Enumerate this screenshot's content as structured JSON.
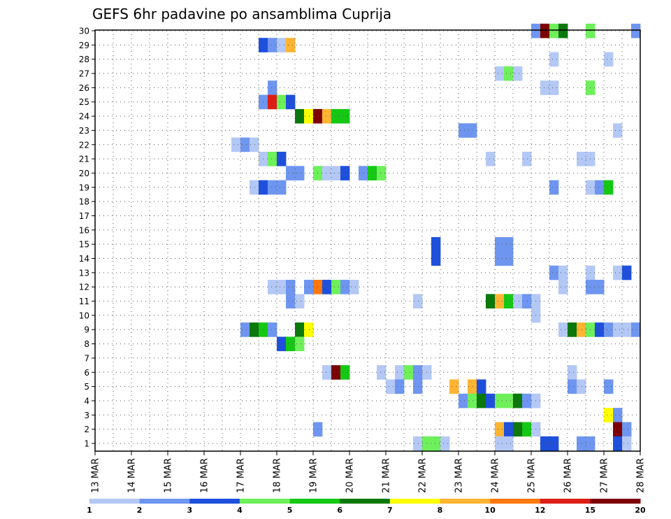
{
  "chart_data": {
    "type": "heatmap",
    "title": "GEFS 6hr padavine po ansamblima Cuprija",
    "ylabel": "",
    "xlabel": "",
    "y_range": [
      1,
      30
    ],
    "x_range": [
      13,
      28
    ],
    "y_ticks": [
      "1",
      "2",
      "3",
      "4",
      "5",
      "6",
      "7",
      "8",
      "9",
      "10",
      "11",
      "12",
      "13",
      "14",
      "15",
      "16",
      "17",
      "18",
      "19",
      "20",
      "21",
      "22",
      "23",
      "24",
      "25",
      "26",
      "27",
      "28",
      "29",
      "30"
    ],
    "x_ticks": [
      "13 MAR",
      "14 MAR",
      "15 MAR",
      "16 MAR",
      "17 MAR",
      "18 MAR",
      "19 MAR",
      "20 MAR",
      "21 MAR",
      "22 MAR",
      "23 MAR",
      "24 MAR",
      "25 MAR",
      "26 MAR",
      "27 MAR",
      "28 MAR"
    ],
    "grid": true,
    "legend": {
      "position": "bottom",
      "colors": [
        "#b4c8f5",
        "#6e96f0",
        "#1e50dc",
        "#6ef05a",
        "#14c814",
        "#0a780a",
        "#ffff00",
        "#ffb432",
        "#ff780a",
        "#dc1e14",
        "#7d0000"
      ],
      "labels": [
        "1",
        "2",
        "3",
        "4",
        "5",
        "6",
        "7",
        "8",
        "10",
        "12",
        "15",
        "20"
      ]
    },
    "cells": [
      {
        "y": 30,
        "x": 25.0,
        "c": 2
      },
      {
        "y": 30,
        "x": 25.25,
        "c": 11
      },
      {
        "y": 30,
        "x": 25.5,
        "c": 4
      },
      {
        "y": 30,
        "x": 25.75,
        "c": 6
      },
      {
        "y": 30,
        "x": 26.5,
        "c": 4
      },
      {
        "y": 30,
        "x": 27.75,
        "c": 2
      },
      {
        "y": 29,
        "x": 17.5,
        "c": 3
      },
      {
        "y": 29,
        "x": 17.75,
        "c": 2
      },
      {
        "y": 29,
        "x": 18.0,
        "c": 1
      },
      {
        "y": 29,
        "x": 18.25,
        "c": 8
      },
      {
        "y": 28,
        "x": 25.5,
        "c": 1
      },
      {
        "y": 28,
        "x": 27.0,
        "c": 1
      },
      {
        "y": 27,
        "x": 24.0,
        "c": 1
      },
      {
        "y": 27,
        "x": 24.25,
        "c": 4
      },
      {
        "y": 27,
        "x": 24.5,
        "c": 1
      },
      {
        "y": 26,
        "x": 17.75,
        "c": 2
      },
      {
        "y": 26,
        "x": 25.25,
        "c": 1
      },
      {
        "y": 26,
        "x": 25.5,
        "c": 1
      },
      {
        "y": 26,
        "x": 26.5,
        "c": 4
      },
      {
        "y": 25,
        "x": 17.5,
        "c": 2
      },
      {
        "y": 25,
        "x": 17.75,
        "c": 10
      },
      {
        "y": 25,
        "x": 18.0,
        "c": 4
      },
      {
        "y": 25,
        "x": 18.25,
        "c": 3
      },
      {
        "y": 24,
        "x": 18.5,
        "c": 6
      },
      {
        "y": 24,
        "x": 18.75,
        "c": 7
      },
      {
        "y": 24,
        "x": 19.0,
        "c": 11
      },
      {
        "y": 24,
        "x": 19.25,
        "c": 8
      },
      {
        "y": 24,
        "x": 19.5,
        "c": 5
      },
      {
        "y": 24,
        "x": 19.75,
        "c": 5
      },
      {
        "y": 23,
        "x": 23.0,
        "c": 2
      },
      {
        "y": 23,
        "x": 23.25,
        "c": 2
      },
      {
        "y": 23,
        "x": 27.25,
        "c": 1
      },
      {
        "y": 22,
        "x": 16.75,
        "c": 1
      },
      {
        "y": 22,
        "x": 17.0,
        "c": 2
      },
      {
        "y": 22,
        "x": 17.25,
        "c": 1
      },
      {
        "y": 21,
        "x": 17.5,
        "c": 1
      },
      {
        "y": 21,
        "x": 17.75,
        "c": 4
      },
      {
        "y": 21,
        "x": 18.0,
        "c": 3
      },
      {
        "y": 21,
        "x": 23.75,
        "c": 1
      },
      {
        "y": 21,
        "x": 24.75,
        "c": 1
      },
      {
        "y": 21,
        "x": 26.25,
        "c": 1
      },
      {
        "y": 21,
        "x": 26.5,
        "c": 1
      },
      {
        "y": 20,
        "x": 18.25,
        "c": 2
      },
      {
        "y": 20,
        "x": 18.5,
        "c": 2
      },
      {
        "y": 20,
        "x": 19.0,
        "c": 4
      },
      {
        "y": 20,
        "x": 19.25,
        "c": 1
      },
      {
        "y": 20,
        "x": 19.5,
        "c": 1
      },
      {
        "y": 20,
        "x": 19.75,
        "c": 3
      },
      {
        "y": 20,
        "x": 20.25,
        "c": 2
      },
      {
        "y": 20,
        "x": 20.5,
        "c": 5
      },
      {
        "y": 20,
        "x": 20.75,
        "c": 4
      },
      {
        "y": 19,
        "x": 17.25,
        "c": 1
      },
      {
        "y": 19,
        "x": 17.5,
        "c": 3
      },
      {
        "y": 19,
        "x": 17.75,
        "c": 2
      },
      {
        "y": 19,
        "x": 18.0,
        "c": 2
      },
      {
        "y": 19,
        "x": 25.5,
        "c": 2
      },
      {
        "y": 19,
        "x": 26.5,
        "c": 1
      },
      {
        "y": 19,
        "x": 26.75,
        "c": 2
      },
      {
        "y": 19,
        "x": 27.0,
        "c": 5
      },
      {
        "y": 15,
        "x": 22.25,
        "c": 3
      },
      {
        "y": 15,
        "x": 24.0,
        "c": 2
      },
      {
        "y": 15,
        "x": 24.25,
        "c": 2
      },
      {
        "y": 14,
        "x": 22.25,
        "c": 3
      },
      {
        "y": 14,
        "x": 24.0,
        "c": 2
      },
      {
        "y": 14,
        "x": 24.25,
        "c": 2
      },
      {
        "y": 13,
        "x": 25.5,
        "c": 2
      },
      {
        "y": 13,
        "x": 25.75,
        "c": 1
      },
      {
        "y": 13,
        "x": 26.5,
        "c": 1
      },
      {
        "y": 13,
        "x": 27.25,
        "c": 1
      },
      {
        "y": 13,
        "x": 27.5,
        "c": 3
      },
      {
        "y": 12,
        "x": 17.75,
        "c": 1
      },
      {
        "y": 12,
        "x": 18.0,
        "c": 1
      },
      {
        "y": 12,
        "x": 18.25,
        "c": 2
      },
      {
        "y": 12,
        "x": 18.75,
        "c": 2
      },
      {
        "y": 12,
        "x": 19.0,
        "c": 9
      },
      {
        "y": 12,
        "x": 19.25,
        "c": 3
      },
      {
        "y": 12,
        "x": 19.5,
        "c": 4
      },
      {
        "y": 12,
        "x": 19.75,
        "c": 2
      },
      {
        "y": 12,
        "x": 20.0,
        "c": 1
      },
      {
        "y": 12,
        "x": 25.75,
        "c": 1
      },
      {
        "y": 12,
        "x": 26.5,
        "c": 2
      },
      {
        "y": 12,
        "x": 26.75,
        "c": 2
      },
      {
        "y": 11,
        "x": 18.25,
        "c": 2
      },
      {
        "y": 11,
        "x": 18.5,
        "c": 1
      },
      {
        "y": 11,
        "x": 21.75,
        "c": 1
      },
      {
        "y": 11,
        "x": 23.75,
        "c": 6
      },
      {
        "y": 11,
        "x": 24.0,
        "c": 8
      },
      {
        "y": 11,
        "x": 24.25,
        "c": 5
      },
      {
        "y": 11,
        "x": 24.5,
        "c": 1
      },
      {
        "y": 11,
        "x": 24.75,
        "c": 2
      },
      {
        "y": 11,
        "x": 25.0,
        "c": 1
      },
      {
        "y": 10,
        "x": 25.0,
        "c": 1
      },
      {
        "y": 9,
        "x": 17.0,
        "c": 2
      },
      {
        "y": 9,
        "x": 17.25,
        "c": 6
      },
      {
        "y": 9,
        "x": 17.5,
        "c": 5
      },
      {
        "y": 9,
        "x": 17.75,
        "c": 2
      },
      {
        "y": 9,
        "x": 18.5,
        "c": 6
      },
      {
        "y": 9,
        "x": 18.75,
        "c": 7
      },
      {
        "y": 9,
        "x": 25.75,
        "c": 1
      },
      {
        "y": 9,
        "x": 26.0,
        "c": 6
      },
      {
        "y": 9,
        "x": 26.25,
        "c": 8
      },
      {
        "y": 9,
        "x": 26.5,
        "c": 4
      },
      {
        "y": 9,
        "x": 26.75,
        "c": 3
      },
      {
        "y": 9,
        "x": 27.0,
        "c": 2
      },
      {
        "y": 9,
        "x": 27.25,
        "c": 1
      },
      {
        "y": 9,
        "x": 27.5,
        "c": 1
      },
      {
        "y": 9,
        "x": 27.75,
        "c": 2
      },
      {
        "y": 8,
        "x": 18.0,
        "c": 3
      },
      {
        "y": 8,
        "x": 18.25,
        "c": 5
      },
      {
        "y": 8,
        "x": 18.5,
        "c": 4
      },
      {
        "y": 6,
        "x": 19.25,
        "c": 1
      },
      {
        "y": 6,
        "x": 19.5,
        "c": 11
      },
      {
        "y": 6,
        "x": 19.75,
        "c": 5
      },
      {
        "y": 6,
        "x": 20.75,
        "c": 1
      },
      {
        "y": 6,
        "x": 21.25,
        "c": 1
      },
      {
        "y": 6,
        "x": 21.5,
        "c": 4
      },
      {
        "y": 6,
        "x": 21.75,
        "c": 2
      },
      {
        "y": 6,
        "x": 22.0,
        "c": 1
      },
      {
        "y": 6,
        "x": 26.0,
        "c": 1
      },
      {
        "y": 5,
        "x": 21.0,
        "c": 1
      },
      {
        "y": 5,
        "x": 21.25,
        "c": 2
      },
      {
        "y": 5,
        "x": 21.75,
        "c": 2
      },
      {
        "y": 5,
        "x": 22.75,
        "c": 8
      },
      {
        "y": 5,
        "x": 23.25,
        "c": 8
      },
      {
        "y": 5,
        "x": 23.5,
        "c": 3
      },
      {
        "y": 5,
        "x": 26.0,
        "c": 2
      },
      {
        "y": 5,
        "x": 26.25,
        "c": 1
      },
      {
        "y": 5,
        "x": 27.0,
        "c": 2
      },
      {
        "y": 4,
        "x": 23.0,
        "c": 2
      },
      {
        "y": 4,
        "x": 23.25,
        "c": 4
      },
      {
        "y": 4,
        "x": 23.5,
        "c": 6
      },
      {
        "y": 4,
        "x": 23.75,
        "c": 3
      },
      {
        "y": 4,
        "x": 24.0,
        "c": 4
      },
      {
        "y": 4,
        "x": 24.25,
        "c": 4
      },
      {
        "y": 4,
        "x": 24.5,
        "c": 6
      },
      {
        "y": 4,
        "x": 24.75,
        "c": 2
      },
      {
        "y": 4,
        "x": 25.0,
        "c": 1
      },
      {
        "y": 3,
        "x": 27.0,
        "c": 7
      },
      {
        "y": 3,
        "x": 27.25,
        "c": 2
      },
      {
        "y": 2,
        "x": 19.0,
        "c": 2
      },
      {
        "y": 2,
        "x": 24.0,
        "c": 8
      },
      {
        "y": 2,
        "x": 24.25,
        "c": 3
      },
      {
        "y": 2,
        "x": 24.5,
        "c": 6
      },
      {
        "y": 2,
        "x": 24.75,
        "c": 5
      },
      {
        "y": 2,
        "x": 25.0,
        "c": 1
      },
      {
        "y": 2,
        "x": 27.25,
        "c": 11
      },
      {
        "y": 2,
        "x": 27.5,
        "c": 2
      },
      {
        "y": 1,
        "x": 21.75,
        "c": 1
      },
      {
        "y": 1,
        "x": 22.0,
        "c": 4
      },
      {
        "y": 1,
        "x": 22.25,
        "c": 4
      },
      {
        "y": 1,
        "x": 22.5,
        "c": 1
      },
      {
        "y": 1,
        "x": 24.0,
        "c": 1
      },
      {
        "y": 1,
        "x": 24.25,
        "c": 1
      },
      {
        "y": 1,
        "x": 25.25,
        "c": 3
      },
      {
        "y": 1,
        "x": 25.5,
        "c": 3
      },
      {
        "y": 1,
        "x": 26.25,
        "c": 2
      },
      {
        "y": 1,
        "x": 26.5,
        "c": 2
      },
      {
        "y": 1,
        "x": 27.25,
        "c": 3
      },
      {
        "y": 1,
        "x": 27.5,
        "c": 1
      }
    ]
  }
}
